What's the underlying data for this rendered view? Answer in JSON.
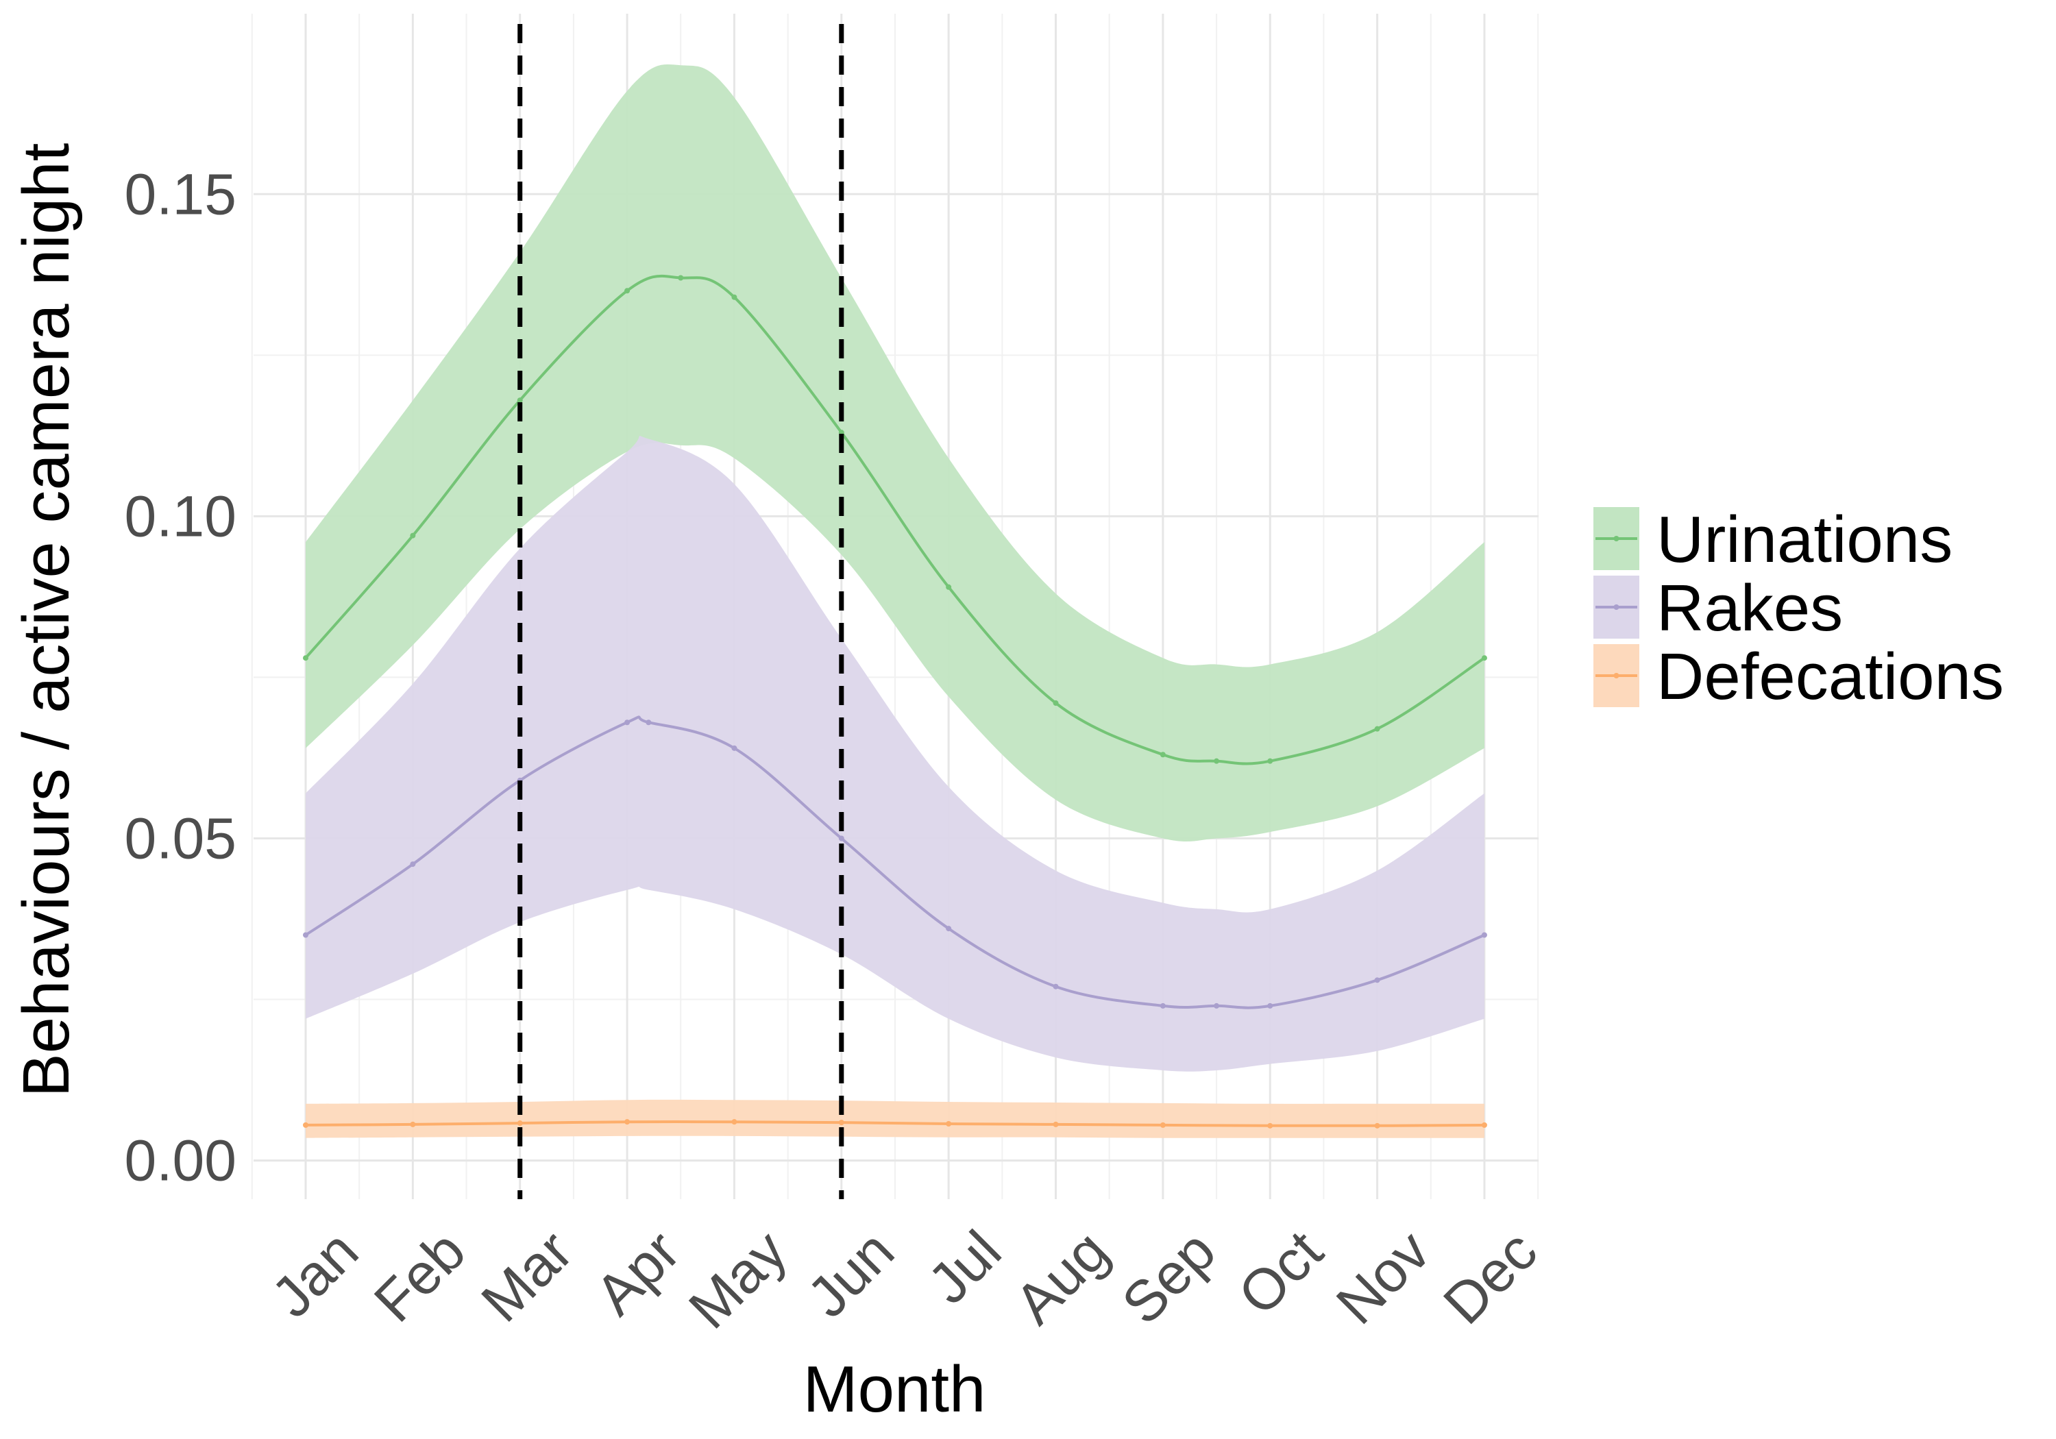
{
  "chart_data": {
    "type": "line",
    "xlabel": "Month",
    "ylabel": "Behaviours / active camera night",
    "categories": [
      "Jan",
      "Feb",
      "Mar",
      "Apr",
      "May",
      "Jun",
      "Jul",
      "Aug",
      "Sep",
      "Oct",
      "Nov",
      "Dec"
    ],
    "ylim": [
      -0.006,
      0.178
    ],
    "yticks": [
      0.0,
      0.05,
      0.1,
      0.15
    ],
    "ytick_labels": [
      "0.00",
      "0.05",
      "0.10",
      "0.15"
    ],
    "grid": true,
    "legend_position": "right",
    "vlines": [
      {
        "x": "Mar",
        "style": "dashed",
        "color": "#000000"
      },
      {
        "x": "Jun",
        "style": "dashed",
        "color": "#000000"
      }
    ],
    "series": [
      {
        "name": "Urinations",
        "color": "#74c476",
        "fill": "#c2e5c2",
        "x": [
          1,
          2,
          3,
          4,
          4.5,
          5,
          6,
          7,
          8,
          9,
          9.5,
          10,
          11,
          12
        ],
        "values": [
          0.078,
          0.097,
          0.118,
          0.135,
          0.137,
          0.134,
          0.113,
          0.089,
          0.071,
          0.063,
          0.062,
          0.062,
          0.067,
          0.078
        ],
        "lower": [
          0.064,
          0.08,
          0.098,
          0.11,
          0.111,
          0.109,
          0.094,
          0.072,
          0.056,
          0.05,
          0.05,
          0.051,
          0.055,
          0.064
        ],
        "upper": [
          0.096,
          0.118,
          0.141,
          0.166,
          0.17,
          0.165,
          0.137,
          0.109,
          0.088,
          0.078,
          0.077,
          0.077,
          0.082,
          0.096
        ]
      },
      {
        "name": "Rakes",
        "color": "#a99fcd",
        "fill": "#dcd6ea",
        "x": [
          1,
          2,
          3,
          4,
          4.2,
          5,
          6,
          7,
          8,
          9,
          9.5,
          10,
          11,
          12
        ],
        "values": [
          0.035,
          0.046,
          0.059,
          0.068,
          0.068,
          0.064,
          0.05,
          0.036,
          0.027,
          0.024,
          0.024,
          0.024,
          0.028,
          0.035
        ],
        "lower": [
          0.022,
          0.029,
          0.037,
          0.042,
          0.042,
          0.039,
          0.032,
          0.022,
          0.016,
          0.014,
          0.014,
          0.015,
          0.017,
          0.022
        ],
        "upper": [
          0.057,
          0.074,
          0.095,
          0.11,
          0.112,
          0.105,
          0.081,
          0.058,
          0.045,
          0.04,
          0.039,
          0.039,
          0.045,
          0.057
        ]
      },
      {
        "name": "Defecations",
        "color": "#fdae6b",
        "fill": "#fdd9bc",
        "x": [
          1,
          2,
          3,
          4,
          5,
          6,
          7,
          8,
          9,
          10,
          11,
          12
        ],
        "values": [
          0.0055,
          0.0056,
          0.0058,
          0.006,
          0.006,
          0.0059,
          0.0057,
          0.0056,
          0.0055,
          0.0054,
          0.0054,
          0.0055
        ],
        "lower": [
          0.0035,
          0.0036,
          0.0037,
          0.0038,
          0.0038,
          0.0037,
          0.0036,
          0.0036,
          0.0035,
          0.0035,
          0.0035,
          0.0035
        ],
        "upper": [
          0.0088,
          0.0089,
          0.0091,
          0.0094,
          0.0094,
          0.0093,
          0.0091,
          0.009,
          0.0089,
          0.0088,
          0.0088,
          0.0088
        ]
      }
    ]
  }
}
